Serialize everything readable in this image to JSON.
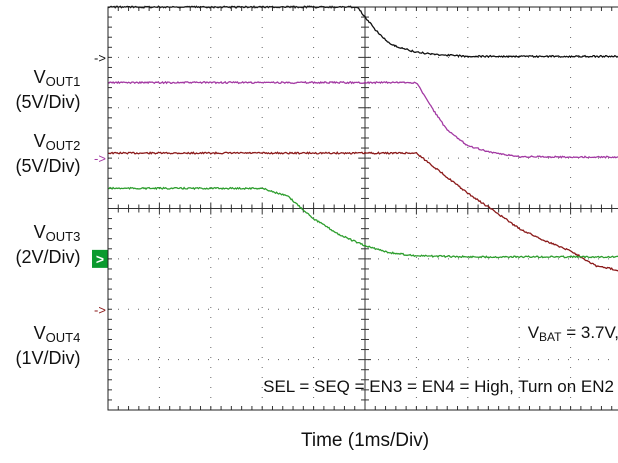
{
  "chart_data": {
    "type": "line",
    "title": "",
    "xlabel": "Time  (1ms/Div)",
    "x_divisions": 10,
    "y_divisions": 8,
    "x_unit": "ms",
    "x_range": [
      0,
      10
    ],
    "grid": true,
    "grid_style": "dotted",
    "channel_labels": [
      {
        "name": "V",
        "sub": "OUT1",
        "scale": "(5V/Div)"
      },
      {
        "name": "V",
        "sub": "OUT2",
        "scale": "(5V/Div)"
      },
      {
        "name": "V",
        "sub": "OUT3",
        "scale": "(2V/Div)"
      },
      {
        "name": "V",
        "sub": "OUT4",
        "scale": "(1V/Div)"
      }
    ],
    "series": [
      {
        "name": "VOUT1",
        "color": "#8b1a1a",
        "volts_per_div": 5,
        "ground_div": 2.0,
        "x": [
          0,
          1,
          2,
          3,
          4,
          5,
          6.0,
          6.4,
          7,
          7.5,
          8,
          8.5,
          9,
          9.5,
          10
        ],
        "y": [
          15.5,
          15.5,
          15.5,
          15.5,
          15.5,
          15.5,
          15.5,
          13.9,
          11.5,
          9.8,
          8.0,
          6.8,
          5.8,
          4.3,
          3.8
        ]
      },
      {
        "name": "VOUT2",
        "color": "#2e9e2e",
        "volts_per_div": 5,
        "ground_div": 3.0,
        "x": [
          0,
          1,
          2,
          3,
          3.5,
          4,
          4.5,
          5,
          5.5,
          6,
          7,
          8,
          9,
          10
        ],
        "y": [
          7.0,
          7.0,
          7.0,
          7.0,
          6.2,
          4.0,
          2.4,
          1.3,
          0.6,
          0.3,
          0.2,
          0.2,
          0.2,
          0.2
        ]
      },
      {
        "name": "VOUT3",
        "color": "#a33aa3",
        "volts_per_div": 2,
        "ground_div": 5.0,
        "x": [
          0,
          1,
          2,
          3,
          4,
          5,
          6.0,
          6.3,
          6.6,
          7,
          7.5,
          8,
          9,
          10
        ],
        "y": [
          3.0,
          3.0,
          3.0,
          3.0,
          3.0,
          3.0,
          3.0,
          2.0,
          1.1,
          0.5,
          0.2,
          0.06,
          0.04,
          0.04
        ]
      },
      {
        "name": "VOUT4",
        "color": "#111111",
        "volts_per_div": 1,
        "ground_div": 7.0,
        "x": [
          0,
          1,
          2,
          3,
          4,
          4.85,
          5.2,
          5.5,
          6,
          6.5,
          7,
          8,
          9,
          10
        ],
        "y": [
          1.0,
          1.0,
          1.0,
          1.0,
          1.0,
          1.0,
          0.55,
          0.25,
          0.1,
          0.05,
          0.02,
          0.02,
          0.02,
          0.02
        ]
      }
    ],
    "annotations": [
      {
        "main": "V",
        "sub": "BAT",
        "rest": " = 3.7V,"
      },
      {
        "text": "SEL = SEQ = EN3 = EN4 = High, Turn on EN2"
      }
    ],
    "markers": [
      {
        "glyph": "->",
        "highlight": false
      },
      {
        "glyph": "->",
        "highlight": true
      },
      {
        "glyph": "->",
        "highlight": false
      },
      {
        "glyph": "->",
        "highlight": false
      }
    ]
  }
}
